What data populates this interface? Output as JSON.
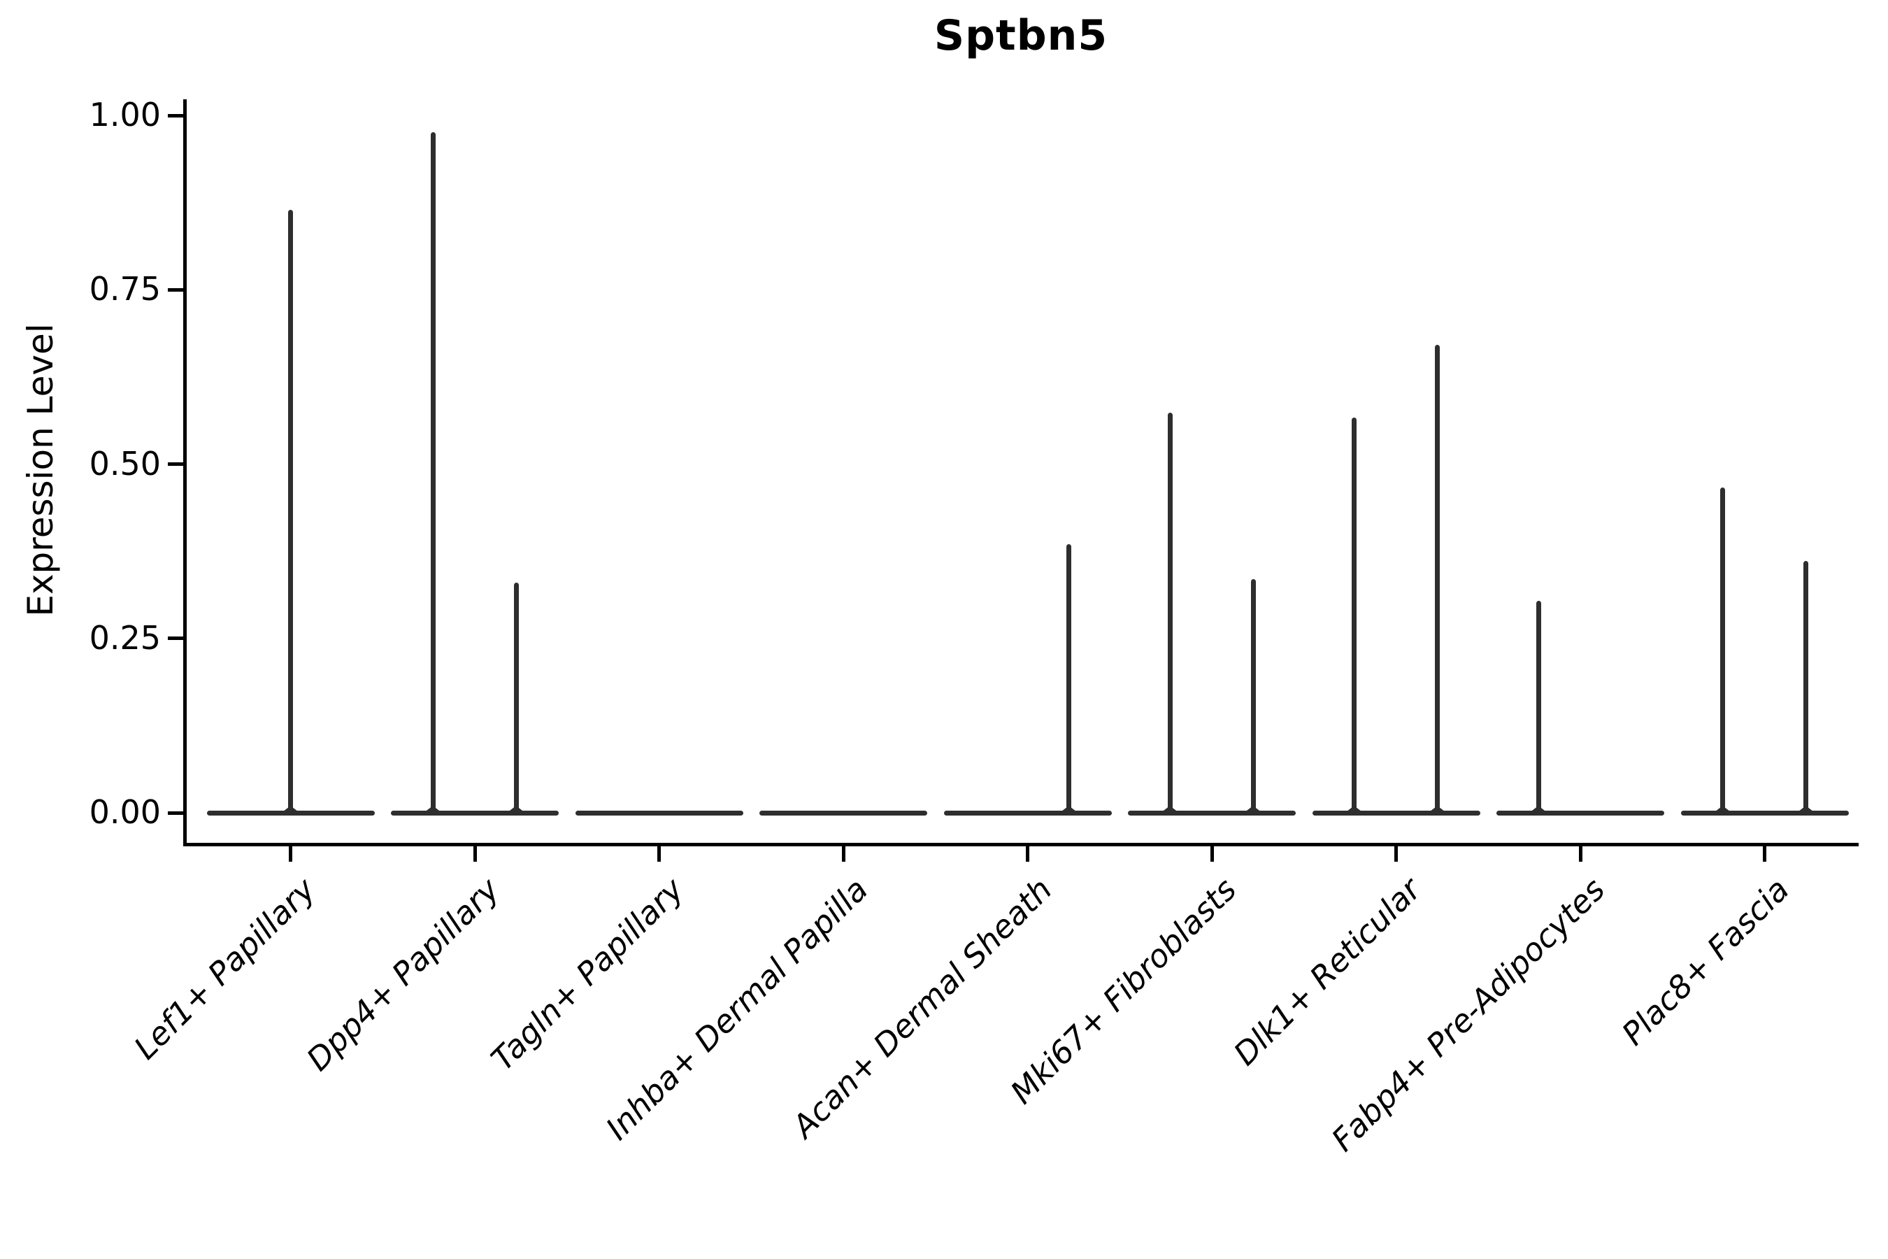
{
  "title": "Sptbn5",
  "y_axis": {
    "label": "Expression Level",
    "tick_labels": [
      "0.00",
      "0.25",
      "0.50",
      "0.75",
      "1.00"
    ]
  },
  "chart_data": {
    "type": "violin",
    "title": "Sptbn5",
    "xlabel": "",
    "ylabel": "Expression Level",
    "ylim": [
      0,
      1.0
    ],
    "ytick_values": [
      0,
      0.25,
      0.5,
      0.75,
      1.0
    ],
    "ytick_labels": [
      "0.00",
      "0.25",
      "0.50",
      "0.75",
      "1.00"
    ],
    "grid": false,
    "legend": "none",
    "categories": [
      "Lef1+ Papillary",
      "Dpp4+ Papillary",
      "Tagln+ Papillary",
      "Inhba+ Dermal Papilla",
      "Acan+ Dermal Sheath",
      "Mki67+ Fibroblasts",
      "Dlk1+ Reticular",
      "Fabp4+ Pre-Adipocytes",
      "Plac8+ Fascia"
    ],
    "description": "Flat violins at expression 0 with thin density spikes; spikes listed per category with the maximum expression they reach",
    "violins": [
      {
        "category": "Lef1+ Papillary",
        "baseline_value": 0,
        "spikes": [
          {
            "side": "center",
            "max_expression": 0.865
          }
        ]
      },
      {
        "category": "Dpp4+ Papillary",
        "baseline_value": 0,
        "spikes": [
          {
            "side": "left",
            "max_expression": 0.976
          },
          {
            "side": "right",
            "max_expression": 0.33
          }
        ]
      },
      {
        "category": "Tagln+ Papillary",
        "baseline_value": 0,
        "spikes": []
      },
      {
        "category": "Inhba+ Dermal Papilla",
        "baseline_value": 0,
        "spikes": []
      },
      {
        "category": "Acan+ Dermal Sheath",
        "baseline_value": 0,
        "spikes": [
          {
            "side": "right",
            "max_expression": 0.385
          }
        ]
      },
      {
        "category": "Mki67+ Fibroblasts",
        "baseline_value": 0,
        "spikes": [
          {
            "side": "left",
            "max_expression": 0.574
          },
          {
            "side": "right",
            "max_expression": 0.335
          }
        ]
      },
      {
        "category": "Dlk1+ Reticular",
        "baseline_value": 0,
        "spikes": [
          {
            "side": "left",
            "max_expression": 0.567
          },
          {
            "side": "right",
            "max_expression": 0.671
          }
        ]
      },
      {
        "category": "Fabp4+ Pre-Adipocytes",
        "baseline_value": 0,
        "spikes": [
          {
            "side": "left",
            "max_expression": 0.304
          }
        ]
      },
      {
        "category": "Plac8+ Fascia",
        "baseline_value": 0,
        "spikes": [
          {
            "side": "left",
            "max_expression": 0.466
          },
          {
            "side": "right",
            "max_expression": 0.361
          }
        ]
      }
    ],
    "colors": {
      "violin": "#2e2e2e",
      "axis": "#000000",
      "text": "#000000"
    }
  }
}
